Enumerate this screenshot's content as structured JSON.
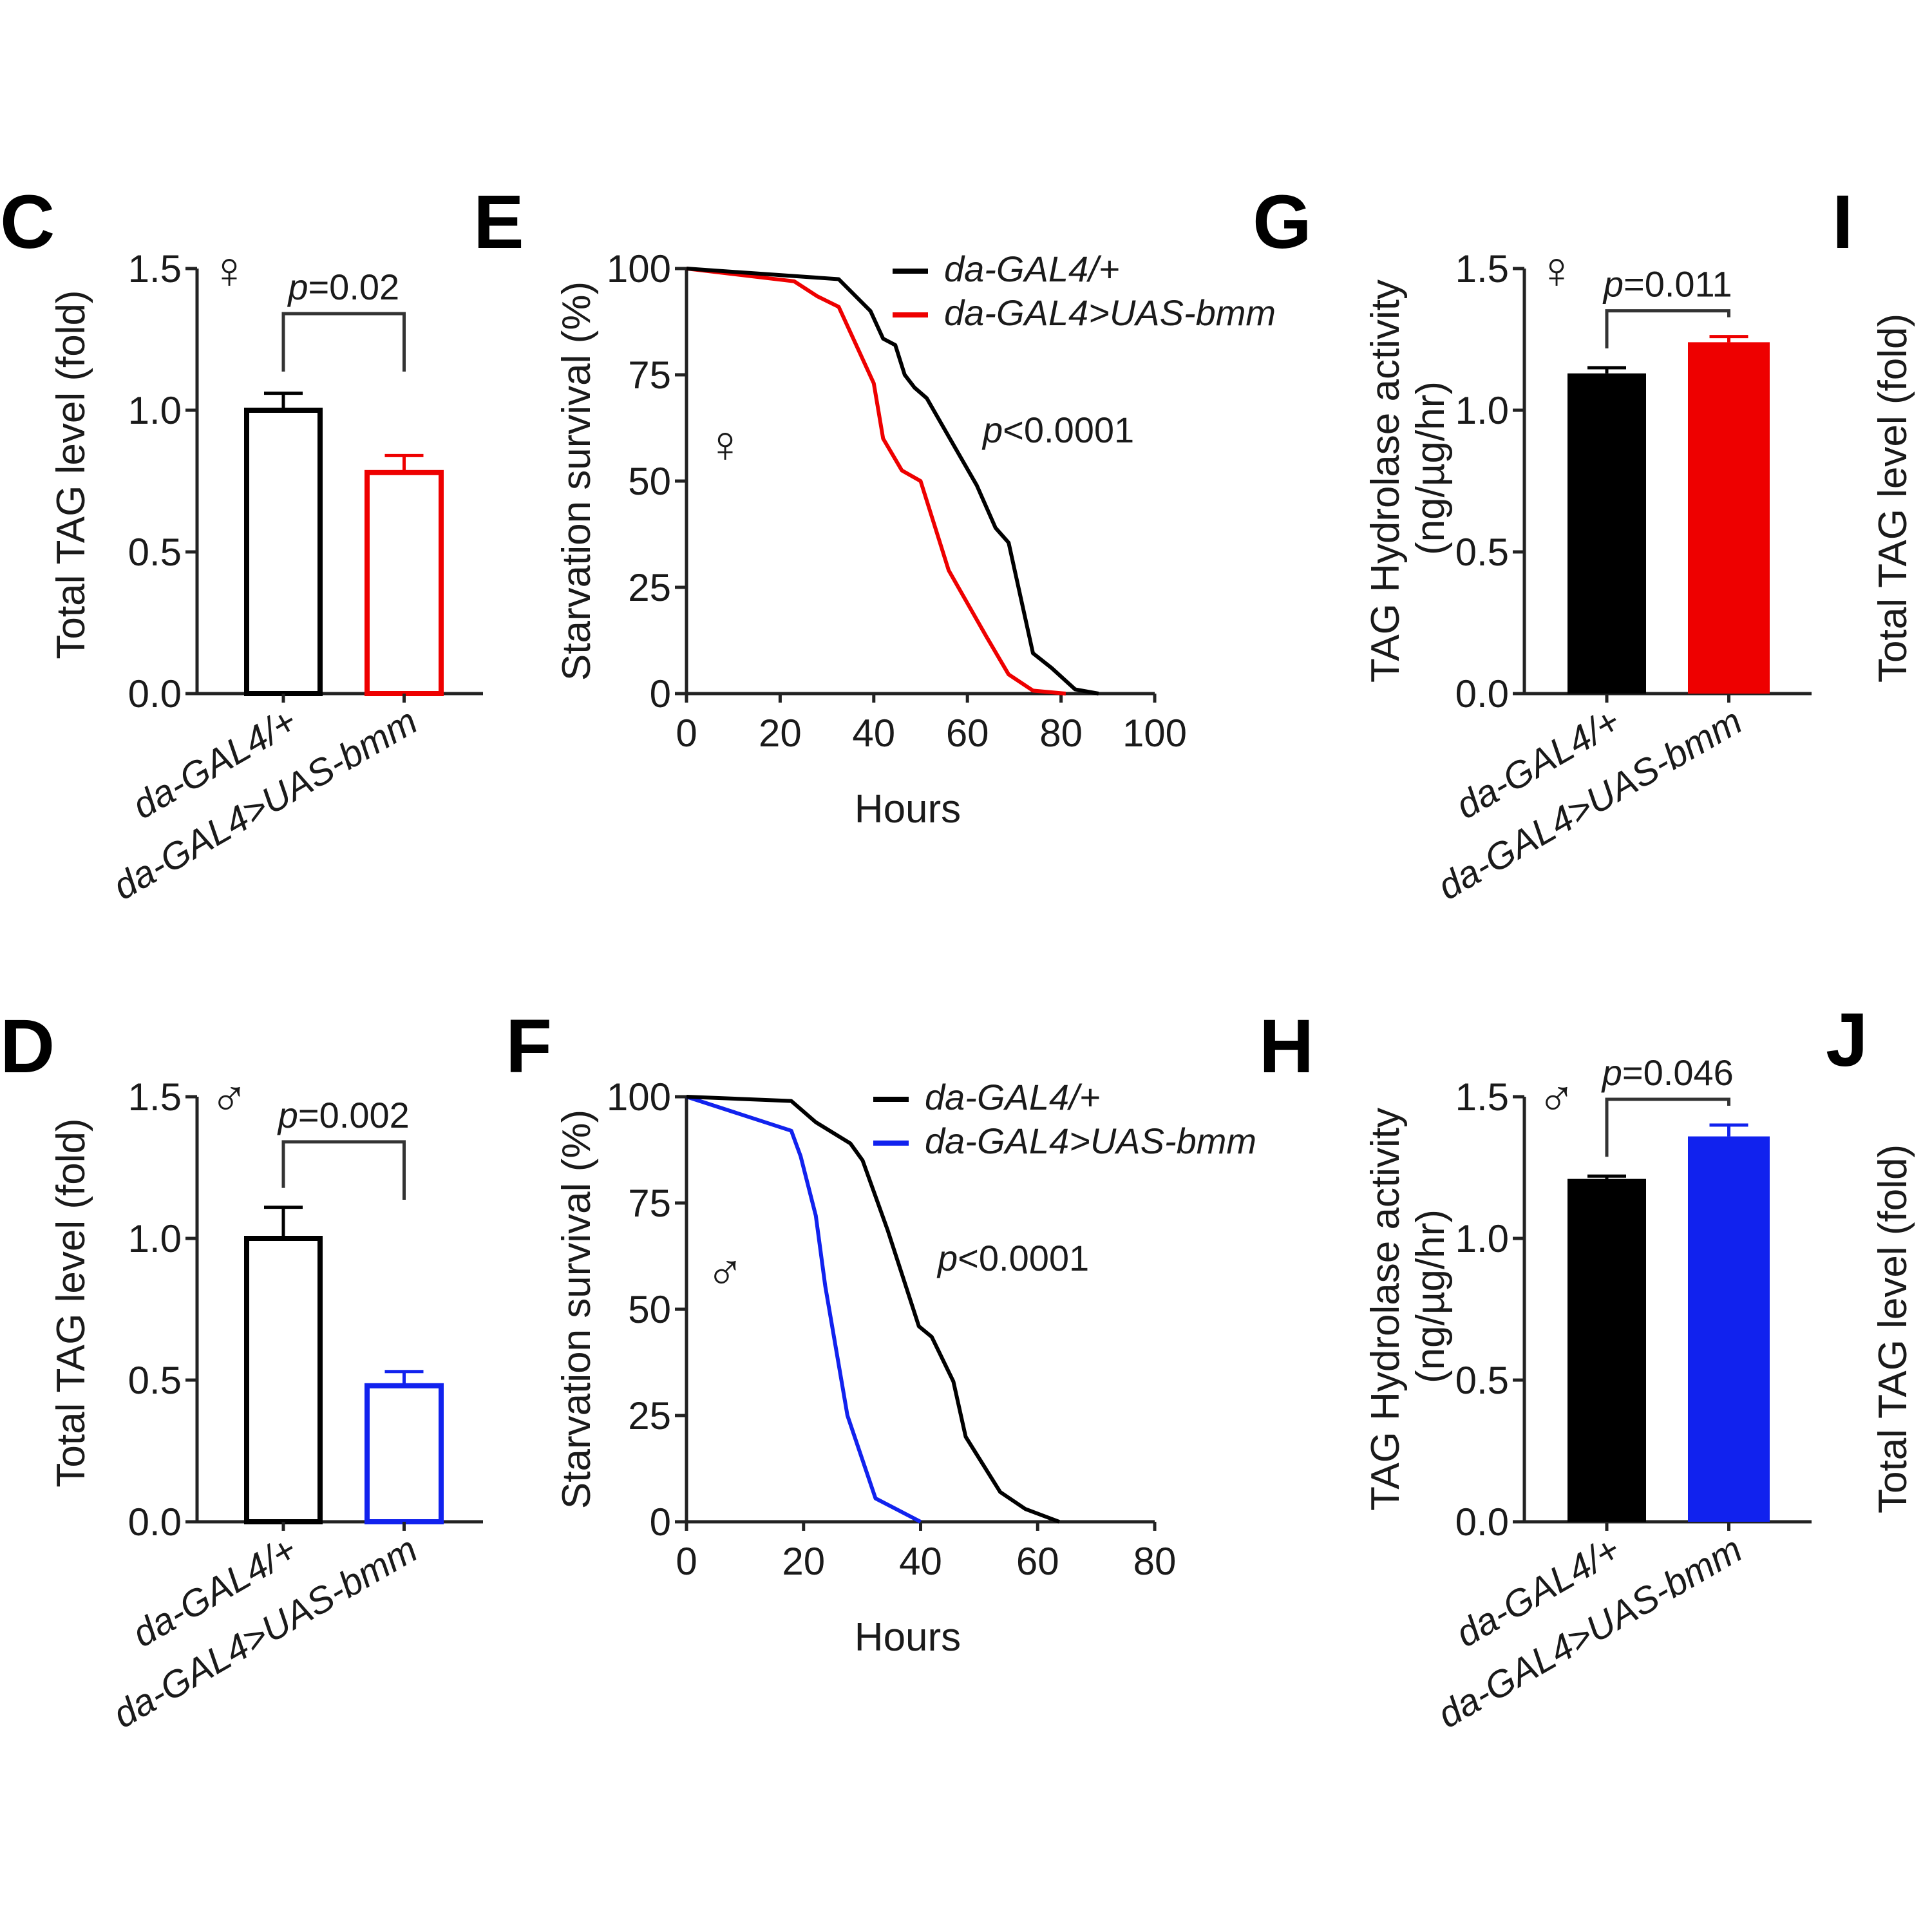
{
  "figure": {
    "colors": {
      "control": "#000000",
      "female_bmm": "#ee0000",
      "male_bmm": "#1122ee"
    },
    "genotypes": [
      "da-GAL4/+",
      "da-GAL4>UAS-bmm"
    ],
    "panels_cut_off": [
      {
        "letter": "I",
        "ylabel": "Total TAG  level (fold)"
      },
      {
        "letter": "J",
        "ylabel": "Total TAG  level (fold)"
      }
    ]
  },
  "chart_data": [
    {
      "panel": "C",
      "type": "bar",
      "style": "outline",
      "sex": "female",
      "sex_symbol": "♀",
      "ylabel": "Total TAG  level (fold)",
      "xlabel": "",
      "ylim": [
        0,
        1.5
      ],
      "yticks": [
        "0.0",
        "0.5",
        "1.0",
        "1.5"
      ],
      "categories": [
        "da-GAL4/+",
        "da-GAL4>UAS-bmm"
      ],
      "values": [
        1.0,
        0.78
      ],
      "errors": [
        0.06,
        0.06
      ],
      "bar_colors": [
        "#000000",
        "#ee0000"
      ],
      "annotation": {
        "prefix": "p",
        "text": "=0.02"
      }
    },
    {
      "panel": "D",
      "type": "bar",
      "style": "outline",
      "sex": "male",
      "sex_symbol": "♂",
      "ylabel": "Total TAG  level (fold)",
      "xlabel": "",
      "ylim": [
        0,
        1.5
      ],
      "yticks": [
        "0.0",
        "0.5",
        "1.0",
        "1.5"
      ],
      "categories": [
        "da-GAL4/+",
        "da-GAL4>UAS-bmm"
      ],
      "values": [
        1.0,
        0.48
      ],
      "errors": [
        0.11,
        0.05
      ],
      "bar_colors": [
        "#000000",
        "#1122ee"
      ],
      "annotation": {
        "prefix": "p",
        "text": "=0.002"
      }
    },
    {
      "panel": "E",
      "type": "line",
      "sex": "female",
      "sex_symbol": "♀",
      "ylabel": "Starvation survival (%)",
      "xlabel": "Hours",
      "xlim": [
        0,
        100
      ],
      "xticks": [
        "0",
        "20",
        "40",
        "60",
        "80",
        "100"
      ],
      "ylim": [
        0,
        100
      ],
      "yticks": [
        "0",
        "25",
        "50",
        "75",
        "100"
      ],
      "legend": "top-right",
      "annotation": {
        "prefix": "p",
        "text": "<0.0001"
      },
      "series": [
        {
          "name": "da-GAL4/+",
          "color": "#000000",
          "x": [
            0,
            32.5,
            39.3,
            42,
            44.6,
            46.6,
            48.7,
            51.3,
            56,
            62,
            66,
            68.8,
            74,
            78,
            83,
            88
          ],
          "y": [
            100,
            97.5,
            90,
            83.5,
            82,
            75,
            72,
            69.5,
            60.5,
            49,
            39,
            35.5,
            9.5,
            6,
            1,
            0
          ]
        },
        {
          "name": "da-GAL4>UAS-bmm",
          "color": "#ee0000",
          "x": [
            0,
            23,
            27.9,
            32.5,
            40,
            42,
            46,
            50,
            56,
            64,
            68.8,
            74,
            81
          ],
          "y": [
            100,
            97,
            93.5,
            91,
            73,
            60,
            52.5,
            50,
            29,
            13.5,
            4.5,
            0.7,
            0
          ]
        }
      ]
    },
    {
      "panel": "F",
      "type": "line",
      "sex": "male",
      "sex_symbol": "♂",
      "ylabel": "Starvation survival (%)",
      "xlabel": "Hours",
      "xlim": [
        0,
        80
      ],
      "xticks": [
        "0",
        "20",
        "40",
        "60",
        "80"
      ],
      "ylim": [
        0,
        100
      ],
      "yticks": [
        "0",
        "25",
        "50",
        "75",
        "100"
      ],
      "legend": "top-right",
      "annotation": {
        "prefix": "p",
        "text": "<0.0001"
      },
      "series": [
        {
          "name": "da-GAL4/+",
          "color": "#000000",
          "x": [
            0,
            17.9,
            22.1,
            28,
            30.1,
            34.4,
            39.7,
            41.9,
            45.6,
            47.7,
            53.6,
            57.9,
            63.7
          ],
          "y": [
            100,
            99,
            94,
            89,
            85,
            68.5,
            46,
            43.5,
            33,
            20,
            7,
            3,
            0
          ]
        },
        {
          "name": "da-GAL4>UAS-bmm",
          "color": "#1122ee",
          "x": [
            0,
            17.9,
            19.5,
            22.1,
            23.7,
            27.5,
            32.3,
            40
          ],
          "y": [
            100,
            92,
            86,
            72,
            55.5,
            25,
            5.5,
            0
          ]
        }
      ]
    },
    {
      "panel": "G",
      "type": "bar",
      "style": "filled",
      "sex": "female",
      "sex_symbol": "♀",
      "ylabel": "TAG Hydrolase activity",
      "ylabel2": "(ng/µg/hr)",
      "xlabel": "",
      "ylim": [
        0,
        1.5
      ],
      "yticks": [
        "0.0",
        "0.5",
        "1.0",
        "1.5"
      ],
      "categories": [
        "da-GAL4/+",
        "da-GAL4>UAS-bmm"
      ],
      "values": [
        1.13,
        1.24
      ],
      "errors": [
        0.02,
        0.02
      ],
      "bar_colors": [
        "#000000",
        "#ee0000"
      ],
      "annotation": {
        "prefix": "p",
        "text": "=0.011"
      }
    },
    {
      "panel": "H",
      "type": "bar",
      "style": "filled",
      "sex": "male",
      "sex_symbol": "♂",
      "ylabel": "TAG Hydrolase activity",
      "ylabel2": "(ng/µg/hr)",
      "xlabel": "",
      "ylim": [
        0,
        1.5
      ],
      "yticks": [
        "0.0",
        "0.5",
        "1.0",
        "1.5"
      ],
      "categories": [
        "da-GAL4/+",
        "da-GAL4>UAS-bmm"
      ],
      "values": [
        1.21,
        1.36
      ],
      "errors": [
        0.01,
        0.04
      ],
      "bar_colors": [
        "#000000",
        "#1122ee"
      ],
      "annotation": {
        "prefix": "p",
        "text": "=0.046"
      }
    }
  ]
}
